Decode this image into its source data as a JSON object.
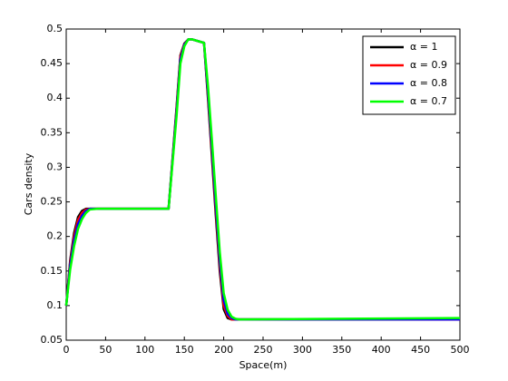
{
  "chart_data": {
    "type": "line",
    "xlabel": "Space(m)",
    "ylabel": "Cars density",
    "x": [
      0,
      5,
      10,
      15,
      20,
      25,
      30,
      40,
      130,
      140,
      145,
      150,
      155,
      160,
      175,
      180,
      185,
      190,
      195,
      200,
      205,
      210,
      215,
      220,
      500
    ],
    "series": [
      {
        "name": "α = 1",
        "color": "#000000",
        "values": [
          0.1,
          0.165,
          0.205,
          0.228,
          0.237,
          0.24,
          0.24,
          0.24,
          0.24,
          0.385,
          0.462,
          0.479,
          0.485,
          0.485,
          0.48,
          0.4,
          0.315,
          0.23,
          0.15,
          0.095,
          0.082,
          0.08,
          0.08,
          0.08,
          0.08
        ]
      },
      {
        "name": "α = 0.9",
        "color": "#ff0000",
        "values": [
          0.1,
          0.162,
          0.2,
          0.224,
          0.234,
          0.239,
          0.24,
          0.24,
          0.24,
          0.382,
          0.46,
          0.478,
          0.485,
          0.485,
          0.48,
          0.405,
          0.322,
          0.238,
          0.158,
          0.1,
          0.085,
          0.08,
          0.08,
          0.08,
          0.08
        ]
      },
      {
        "name": "α = 0.8",
        "color": "#0000ff",
        "values": [
          0.1,
          0.158,
          0.194,
          0.218,
          0.23,
          0.237,
          0.24,
          0.24,
          0.24,
          0.378,
          0.456,
          0.477,
          0.485,
          0.485,
          0.48,
          0.41,
          0.33,
          0.246,
          0.166,
          0.108,
          0.088,
          0.082,
          0.08,
          0.08,
          0.08
        ]
      },
      {
        "name": "α = 0.7",
        "color": "#00ff00",
        "values": [
          0.1,
          0.152,
          0.186,
          0.211,
          0.225,
          0.234,
          0.239,
          0.24,
          0.24,
          0.372,
          0.45,
          0.475,
          0.485,
          0.485,
          0.48,
          0.418,
          0.34,
          0.258,
          0.178,
          0.118,
          0.094,
          0.084,
          0.081,
          0.08,
          0.082
        ]
      }
    ],
    "xlim": [
      0,
      500
    ],
    "xticks": [
      0,
      50,
      100,
      150,
      200,
      250,
      300,
      350,
      400,
      450,
      500
    ],
    "ylim": [
      0.05,
      0.5
    ],
    "yticks": [
      0.05,
      0.1,
      0.15,
      0.2,
      0.25,
      0.3,
      0.35,
      0.4,
      0.45,
      0.5
    ],
    "legend": "upper-right"
  }
}
